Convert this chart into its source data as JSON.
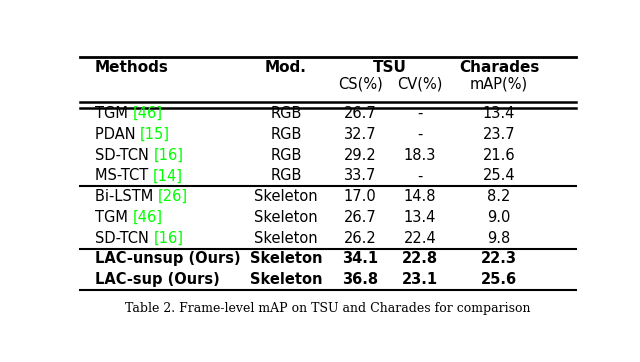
{
  "title": "Table 2. Frame-level mAP on TSU and Charades for comparison",
  "rows": [
    {
      "method": "TGM",
      "ref": "46",
      "mod": "RGB",
      "cs": "26.7",
      "cv": "-",
      "map": "13.4",
      "bold": false
    },
    {
      "method": "PDAN",
      "ref": "15",
      "mod": "RGB",
      "cs": "32.7",
      "cv": "-",
      "map": "23.7",
      "bold": false
    },
    {
      "method": "SD-TCN",
      "ref": "16",
      "mod": "RGB",
      "cs": "29.2",
      "cv": "18.3",
      "map": "21.6",
      "bold": false
    },
    {
      "method": "MS-TCT",
      "ref": "14",
      "mod": "RGB",
      "cs": "33.7",
      "cv": "-",
      "map": "25.4",
      "bold": false
    },
    {
      "method": "Bi-LSTM",
      "ref": "26",
      "mod": "Skeleton",
      "cs": "17.0",
      "cv": "14.8",
      "map": "8.2",
      "bold": false
    },
    {
      "method": "TGM",
      "ref": "46",
      "mod": "Skeleton",
      "cs": "26.7",
      "cv": "13.4",
      "map": "9.0",
      "bold": false
    },
    {
      "method": "SD-TCN",
      "ref": "16",
      "mod": "Skeleton",
      "cs": "26.2",
      "cv": "22.4",
      "map": "9.8",
      "bold": false
    },
    {
      "method": "LAC-unsup (Ours)",
      "ref": "",
      "mod": "Skeleton",
      "cs": "34.1",
      "cv": "22.8",
      "map": "22.3",
      "bold": true
    },
    {
      "method": "LAC-sup (Ours)",
      "ref": "",
      "mod": "Skeleton",
      "cs": "36.8",
      "cv": "23.1",
      "map": "25.6",
      "bold": true
    }
  ],
  "green_color": "#00FF00",
  "text_color": "#000000",
  "bg_color": "#ffffff",
  "fig_width": 6.4,
  "fig_height": 3.62,
  "dpi": 100,
  "col_x": {
    "method": 0.03,
    "mod": 0.415,
    "cs": 0.565,
    "cv": 0.685,
    "map": 0.845
  },
  "header_fs": 11,
  "data_fs": 10.5,
  "caption_fs": 9.0
}
